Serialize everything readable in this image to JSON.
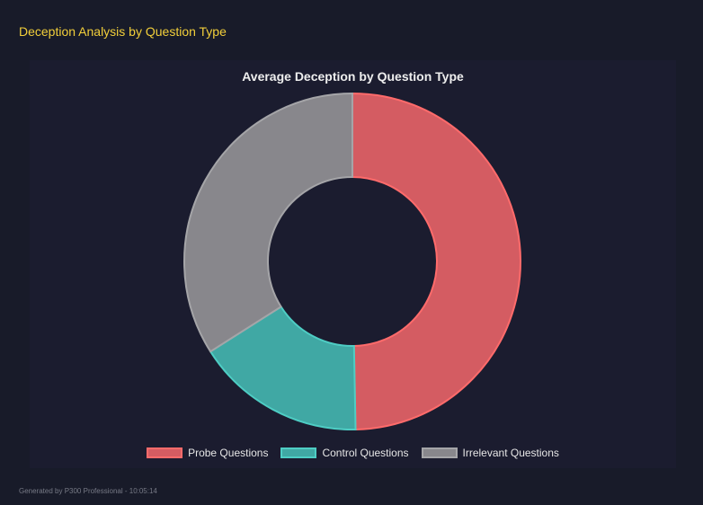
{
  "header": {
    "title": "Deception Analysis by Question Type"
  },
  "footer": {
    "text": "Generated by P300 Professional - 10:05:14"
  },
  "chart_data": {
    "type": "doughnut",
    "title": "Average Deception by Question Type",
    "categories": [
      "Probe Questions",
      "Control Questions",
      "Irrelevant Questions"
    ],
    "values": [
      49.7,
      16.3,
      34.0
    ],
    "colors": {
      "fill": [
        "#d45c62",
        "#40a8a4",
        "#88878c"
      ],
      "border": [
        "#ff6b6b",
        "#4ecdc4",
        "#a5a5a8"
      ]
    },
    "legend": "bottom"
  }
}
